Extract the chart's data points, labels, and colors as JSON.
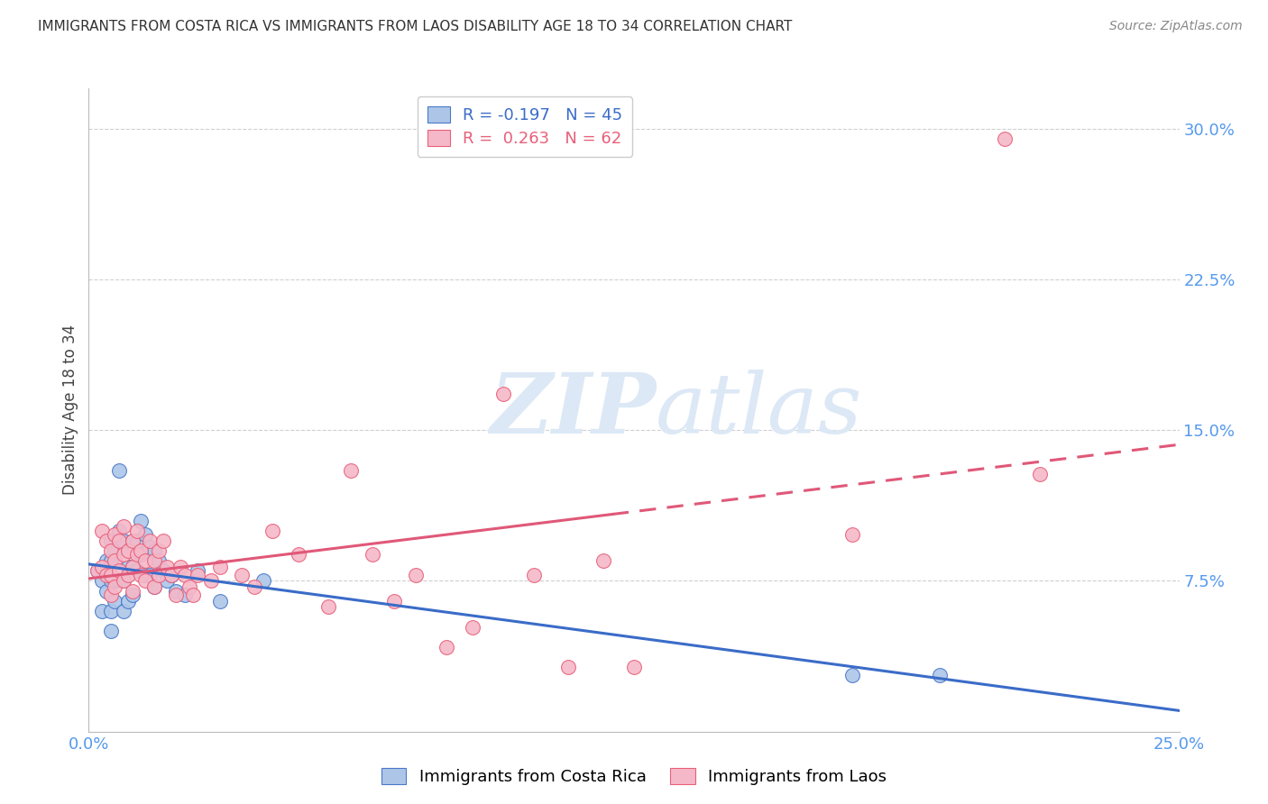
{
  "title": "IMMIGRANTS FROM COSTA RICA VS IMMIGRANTS FROM LAOS DISABILITY AGE 18 TO 34 CORRELATION CHART",
  "source": "Source: ZipAtlas.com",
  "ylabel": "Disability Age 18 to 34",
  "xlim": [
    0.0,
    0.25
  ],
  "ylim": [
    0.0,
    0.32
  ],
  "ytick_positions": [
    0.0,
    0.075,
    0.15,
    0.225,
    0.3
  ],
  "ytick_labels": [
    "",
    "7.5%",
    "15.0%",
    "22.5%",
    "30.0%"
  ],
  "xtick_positions": [
    0.0,
    0.05,
    0.1,
    0.15,
    0.2,
    0.25
  ],
  "xtick_labels": [
    "0.0%",
    "",
    "",
    "",
    "",
    "25.0%"
  ],
  "legend_r_blue": "-0.197",
  "legend_n_blue": "45",
  "legend_r_pink": "0.263",
  "legend_n_pink": "62",
  "blue_fill": "#adc6e8",
  "pink_fill": "#f5b8c8",
  "blue_edge": "#4878c8",
  "pink_edge": "#e8607a",
  "blue_line": "#3a6cc8",
  "pink_line": "#e05878",
  "watermark_color": "#dce8f5",
  "tick_color": "#5599ee",
  "blue_x": [
    0.002,
    0.003,
    0.003,
    0.004,
    0.004,
    0.005,
    0.005,
    0.005,
    0.005,
    0.005,
    0.006,
    0.006,
    0.006,
    0.007,
    0.007,
    0.007,
    0.008,
    0.008,
    0.008,
    0.009,
    0.009,
    0.01,
    0.01,
    0.01,
    0.011,
    0.011,
    0.012,
    0.012,
    0.013,
    0.013,
    0.014,
    0.014,
    0.015,
    0.015,
    0.016,
    0.017,
    0.018,
    0.019,
    0.02,
    0.022,
    0.025,
    0.03,
    0.04,
    0.175,
    0.195
  ],
  "blue_y": [
    0.08,
    0.075,
    0.06,
    0.085,
    0.07,
    0.095,
    0.085,
    0.075,
    0.06,
    0.05,
    0.09,
    0.075,
    0.065,
    0.13,
    0.1,
    0.075,
    0.095,
    0.075,
    0.06,
    0.082,
    0.065,
    0.095,
    0.082,
    0.068,
    0.095,
    0.08,
    0.105,
    0.088,
    0.098,
    0.078,
    0.092,
    0.078,
    0.09,
    0.072,
    0.085,
    0.08,
    0.075,
    0.078,
    0.07,
    0.068,
    0.08,
    0.065,
    0.075,
    0.028,
    0.028
  ],
  "pink_x": [
    0.002,
    0.003,
    0.003,
    0.004,
    0.004,
    0.005,
    0.005,
    0.005,
    0.006,
    0.006,
    0.006,
    0.007,
    0.007,
    0.008,
    0.008,
    0.008,
    0.009,
    0.009,
    0.01,
    0.01,
    0.01,
    0.011,
    0.011,
    0.012,
    0.012,
    0.013,
    0.013,
    0.014,
    0.015,
    0.015,
    0.016,
    0.016,
    0.017,
    0.018,
    0.019,
    0.02,
    0.021,
    0.022,
    0.023,
    0.024,
    0.025,
    0.028,
    0.03,
    0.035,
    0.038,
    0.042,
    0.048,
    0.055,
    0.06,
    0.065,
    0.07,
    0.075,
    0.082,
    0.088,
    0.095,
    0.102,
    0.11,
    0.118,
    0.125,
    0.175,
    0.21,
    0.218
  ],
  "pink_y": [
    0.08,
    0.1,
    0.082,
    0.095,
    0.078,
    0.09,
    0.078,
    0.068,
    0.098,
    0.085,
    0.072,
    0.095,
    0.08,
    0.102,
    0.088,
    0.075,
    0.09,
    0.078,
    0.095,
    0.082,
    0.07,
    0.1,
    0.088,
    0.078,
    0.09,
    0.085,
    0.075,
    0.095,
    0.085,
    0.072,
    0.09,
    0.078,
    0.095,
    0.082,
    0.078,
    0.068,
    0.082,
    0.078,
    0.072,
    0.068,
    0.078,
    0.075,
    0.082,
    0.078,
    0.072,
    0.1,
    0.088,
    0.062,
    0.13,
    0.088,
    0.065,
    0.078,
    0.042,
    0.052,
    0.168,
    0.078,
    0.032,
    0.085,
    0.032,
    0.098,
    0.295,
    0.128
  ]
}
